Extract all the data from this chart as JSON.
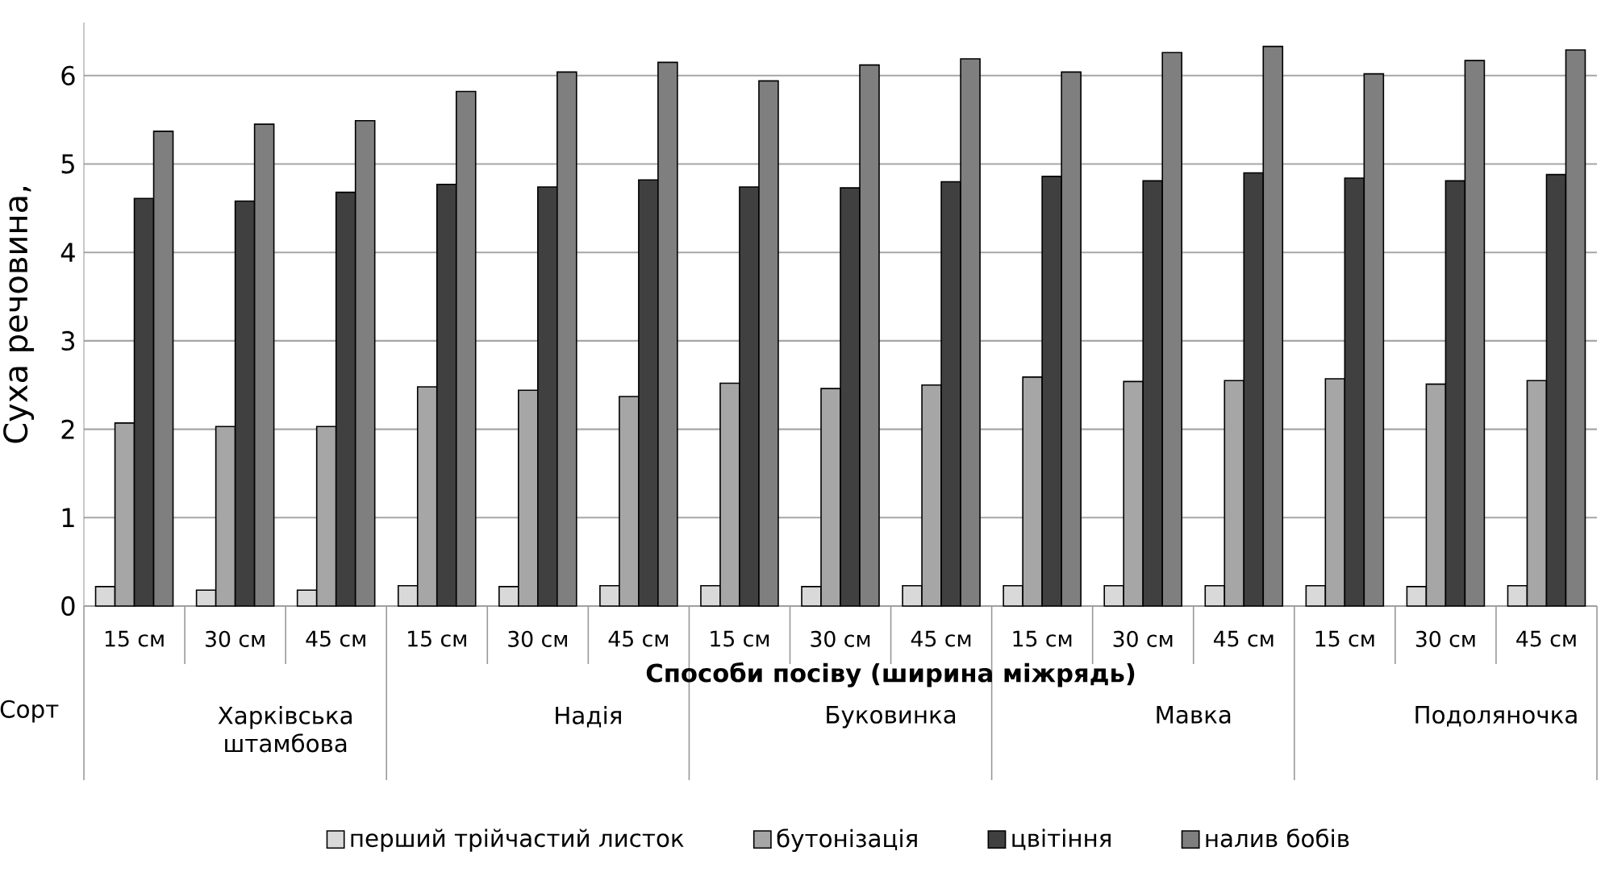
{
  "chart_data": {
    "type": "bar",
    "xlabel": "Способи посіву (ширина міжрядь)",
    "ylabel": "Суха речовина,",
    "categories": [
      "15 см",
      "30 см",
      "45 см",
      "15 см",
      "30 см",
      "45 см",
      "15 см",
      "30 см",
      "45 см",
      "15 см",
      "30 см",
      "45 см",
      "15 см",
      "30 см",
      "45 см"
    ],
    "series": [
      {
        "name": "перший трійчастий листок",
        "color": "#d9d9d9",
        "values": [
          0.22,
          0.18,
          0.18,
          0.23,
          0.22,
          0.23,
          0.23,
          0.22,
          0.23,
          0.23,
          0.23,
          0.23,
          0.23,
          0.22,
          0.23
        ]
      },
      {
        "name": "бутонізація",
        "color": "#a6a6a6",
        "values": [
          2.07,
          2.03,
          2.03,
          2.48,
          2.44,
          2.37,
          2.52,
          2.46,
          2.5,
          2.59,
          2.54,
          2.55,
          2.57,
          2.51,
          2.55
        ]
      },
      {
        "name": "цвітіння",
        "color": "#404040",
        "values": [
          4.61,
          4.58,
          4.68,
          4.77,
          4.74,
          4.82,
          4.74,
          4.73,
          4.8,
          4.86,
          4.81,
          4.9,
          4.84,
          4.81,
          4.88
        ]
      },
      {
        "name": "налив бобів",
        "color": "#7f7f7f",
        "values": [
          5.37,
          5.45,
          5.49,
          5.82,
          6.04,
          6.15,
          5.94,
          6.12,
          6.19,
          6.04,
          6.26,
          6.33,
          6.02,
          6.17,
          6.29
        ]
      }
    ],
    "ylim": [
      0,
      6.6
    ],
    "yticks": [
      0,
      1,
      2,
      3,
      4,
      5,
      6
    ],
    "grid": "y",
    "legend": "bottom",
    "annotations": [
      "Сорт",
      "Харківська штамбова",
      "Надія",
      "Буковинка",
      "Мавка",
      "Подоляночка"
    ]
  }
}
